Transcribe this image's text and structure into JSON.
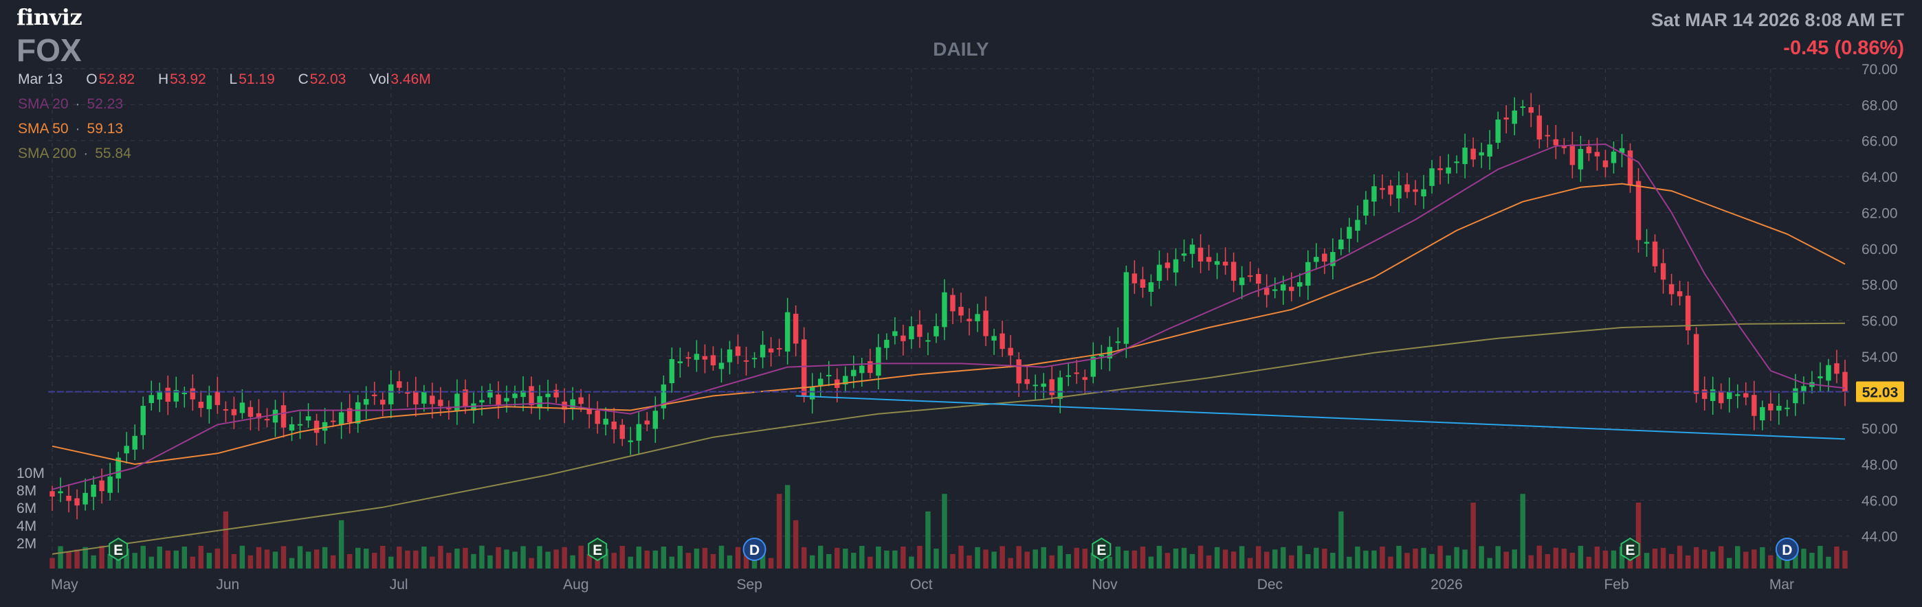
{
  "header": {
    "logo": "finviz",
    "ticker": "FOX",
    "timeframe": "DAILY",
    "datetime": "Sat MAR 14 2026 8:08 AM ET",
    "change": "-0.45 (0.86%)"
  },
  "ohlc": {
    "date": "Mar 13",
    "open_label": "O",
    "open": "52.82",
    "high_label": "H",
    "high": "53.92",
    "low_label": "L",
    "low": "51.19",
    "close_label": "C",
    "close": "52.03",
    "vol_label": "Vol",
    "vol": "3.46M"
  },
  "sma": [
    {
      "label": "SMA 20",
      "value": "52.23",
      "color": "#9b3a8f"
    },
    {
      "label": "SMA 50",
      "value": "59.13",
      "color": "#f0883a"
    },
    {
      "label": "SMA 200",
      "value": "55.84",
      "color": "#8e8a4a"
    }
  ],
  "colors": {
    "up": "#22c55e",
    "down": "#ef4452",
    "vol_up": "#1f7a45",
    "vol_down": "#8c2a33",
    "grid": "#343946",
    "axis_text": "#8c909c",
    "trendline": "#2aa5e8",
    "price_line": "#3f3f9a",
    "last_price_bg": "#f6c026"
  },
  "chart_data": {
    "type": "candlestick",
    "title": "FOX",
    "xlabel": "",
    "ylabel": "",
    "ylim": [
      42.5,
      70
    ],
    "yticks": [
      "70.00",
      "68.00",
      "66.00",
      "64.00",
      "62.00",
      "60.00",
      "58.00",
      "56.00",
      "54.00",
      "52.00",
      "50.00",
      "48.00",
      "46.00",
      "44.00"
    ],
    "volume_ticks": [
      "10M",
      "8M",
      "6M",
      "4M",
      "2M"
    ],
    "volume_max": 10,
    "months": [
      "May",
      "Jun",
      "Jul",
      "Aug",
      "Sep",
      "Oct",
      "Nov",
      "Dec",
      "2026",
      "Feb",
      "Mar"
    ],
    "month_start_index": [
      0,
      20,
      41,
      62,
      83,
      104,
      126,
      146,
      167,
      188,
      208
    ],
    "n_bars": 218,
    "last_price": "52.03",
    "last_price_value": 52.03,
    "price_line_value": 52.03,
    "trendline": {
      "from": {
        "i": 90,
        "price": 51.8
      },
      "to": {
        "i": 217,
        "price": 49.4
      }
    },
    "events": [
      {
        "type": "E",
        "i": 8
      },
      {
        "type": "E",
        "i": 66
      },
      {
        "type": "D",
        "i": 85
      },
      {
        "type": "E",
        "i": 127
      },
      {
        "type": "E",
        "i": 191
      },
      {
        "type": "D",
        "i": 210
      }
    ],
    "anchors": [
      [
        0,
        46.2
      ],
      [
        3,
        46.0
      ],
      [
        6,
        46.8
      ],
      [
        9,
        48.8
      ],
      [
        11,
        51.2
      ],
      [
        13,
        52.0
      ],
      [
        16,
        51.8
      ],
      [
        19,
        51.4
      ],
      [
        22,
        51.0
      ],
      [
        26,
        50.6
      ],
      [
        30,
        50.2
      ],
      [
        34,
        50.3
      ],
      [
        38,
        51.5
      ],
      [
        42,
        52.2
      ],
      [
        45,
        51.5
      ],
      [
        48,
        51.3
      ],
      [
        52,
        51.6
      ],
      [
        56,
        51.8
      ],
      [
        60,
        51.7
      ],
      [
        63,
        51.4
      ],
      [
        66,
        50.6
      ],
      [
        68,
        49.8
      ],
      [
        70,
        49.5
      ],
      [
        72,
        50.2
      ],
      [
        75,
        53.5
      ],
      [
        77,
        54.2
      ],
      [
        79,
        53.6
      ],
      [
        82,
        54.0
      ],
      [
        85,
        54.0
      ],
      [
        88,
        54.6
      ],
      [
        89,
        56.4
      ],
      [
        91,
        52.2
      ],
      [
        93,
        52.6
      ],
      [
        96,
        52.8
      ],
      [
        99,
        53.6
      ],
      [
        102,
        55.4
      ],
      [
        104,
        55.2
      ],
      [
        106,
        55.0
      ],
      [
        108,
        57.0
      ],
      [
        110,
        56.4
      ],
      [
        112,
        55.8
      ],
      [
        114,
        55.2
      ],
      [
        116,
        53.6
      ],
      [
        118,
        52.4
      ],
      [
        120,
        52.2
      ],
      [
        122,
        52.6
      ],
      [
        125,
        53.2
      ],
      [
        127,
        54.0
      ],
      [
        129,
        55.2
      ],
      [
        130,
        58.2
      ],
      [
        132,
        58.0
      ],
      [
        134,
        58.6
      ],
      [
        136,
        59.6
      ],
      [
        138,
        59.8
      ],
      [
        140,
        59.4
      ],
      [
        142,
        58.8
      ],
      [
        144,
        58.4
      ],
      [
        146,
        58.0
      ],
      [
        148,
        57.6
      ],
      [
        150,
        57.8
      ],
      [
        152,
        59.0
      ],
      [
        154,
        59.6
      ],
      [
        156,
        60.2
      ],
      [
        158,
        62.0
      ],
      [
        160,
        63.2
      ],
      [
        162,
        63.4
      ],
      [
        164,
        63.0
      ],
      [
        166,
        63.6
      ],
      [
        168,
        64.4
      ],
      [
        170,
        65.0
      ],
      [
        172,
        65.2
      ],
      [
        174,
        65.8
      ],
      [
        176,
        67.6
      ],
      [
        178,
        67.8
      ],
      [
        180,
        66.6
      ],
      [
        182,
        65.6
      ],
      [
        184,
        65.2
      ],
      [
        186,
        65.2
      ],
      [
        188,
        65.0
      ],
      [
        189,
        64.9
      ],
      [
        190,
        65.6
      ],
      [
        191,
        63.6
      ],
      [
        192,
        60.8
      ],
      [
        193,
        59.8
      ],
      [
        194,
        59.2
      ],
      [
        195,
        58.4
      ],
      [
        196,
        57.6
      ],
      [
        197,
        56.8
      ],
      [
        198,
        55.8
      ],
      [
        199,
        52.0
      ],
      [
        200,
        51.6
      ],
      [
        203,
        52.0
      ],
      [
        206,
        51.2
      ],
      [
        208,
        50.8
      ],
      [
        210,
        51.6
      ],
      [
        212,
        52.2
      ],
      [
        214,
        53.2
      ],
      [
        216,
        53.0
      ],
      [
        217,
        52.03
      ]
    ],
    "sma20_points": [
      [
        0,
        46.6
      ],
      [
        10,
        47.8
      ],
      [
        20,
        50.2
      ],
      [
        30,
        51.0
      ],
      [
        40,
        51.0
      ],
      [
        60,
        51.4
      ],
      [
        70,
        50.8
      ],
      [
        80,
        52.2
      ],
      [
        89,
        53.4
      ],
      [
        100,
        53.6
      ],
      [
        110,
        53.6
      ],
      [
        120,
        53.4
      ],
      [
        128,
        54.0
      ],
      [
        135,
        55.5
      ],
      [
        145,
        57.5
      ],
      [
        155,
        59.2
      ],
      [
        165,
        61.6
      ],
      [
        175,
        64.4
      ],
      [
        182,
        65.7
      ],
      [
        188,
        65.8
      ],
      [
        192,
        64.8
      ],
      [
        196,
        62.0
      ],
      [
        200,
        58.6
      ],
      [
        204,
        55.8
      ],
      [
        208,
        53.2
      ],
      [
        212,
        52.5
      ],
      [
        217,
        52.23
      ]
    ],
    "sma50_points": [
      [
        0,
        49.0
      ],
      [
        10,
        48.0
      ],
      [
        20,
        48.6
      ],
      [
        30,
        49.8
      ],
      [
        40,
        50.6
      ],
      [
        55,
        51.2
      ],
      [
        70,
        51.0
      ],
      [
        80,
        51.8
      ],
      [
        92,
        52.3
      ],
      [
        105,
        53.0
      ],
      [
        118,
        53.5
      ],
      [
        128,
        54.2
      ],
      [
        140,
        55.6
      ],
      [
        150,
        56.6
      ],
      [
        160,
        58.4
      ],
      [
        170,
        61.0
      ],
      [
        178,
        62.6
      ],
      [
        185,
        63.4
      ],
      [
        190,
        63.6
      ],
      [
        196,
        63.2
      ],
      [
        203,
        62.0
      ],
      [
        210,
        60.8
      ],
      [
        217,
        59.13
      ]
    ],
    "sma200_points": [
      [
        0,
        43.0
      ],
      [
        40,
        45.6
      ],
      [
        60,
        47.4
      ],
      [
        80,
        49.5
      ],
      [
        100,
        50.8
      ],
      [
        120,
        51.6
      ],
      [
        140,
        52.8
      ],
      [
        160,
        54.2
      ],
      [
        175,
        55.0
      ],
      [
        190,
        55.6
      ],
      [
        205,
        55.8
      ],
      [
        217,
        55.84
      ]
    ]
  }
}
